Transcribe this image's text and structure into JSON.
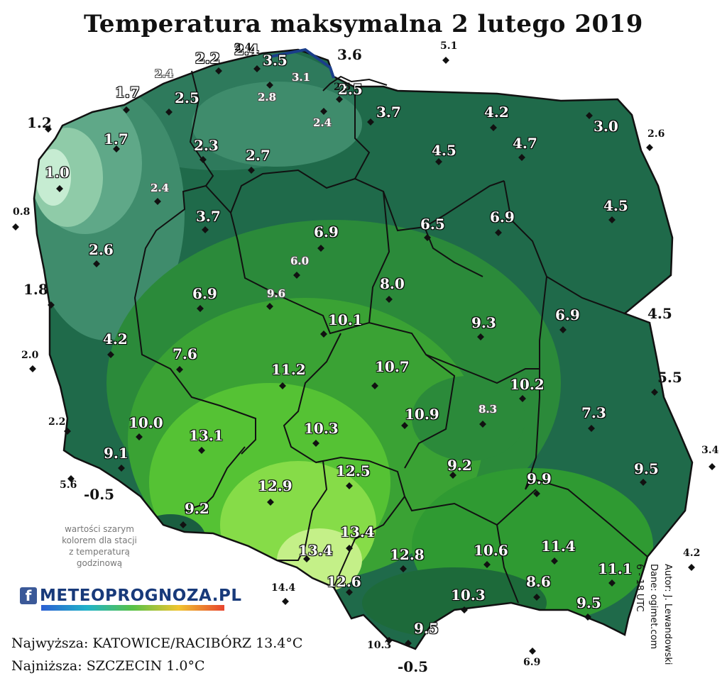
{
  "title": "Temperatura maksymalna 2 lutego 2019",
  "colors": {
    "background": "#ffffff",
    "band_coldest": "#a8dcc0",
    "band_cold": "#5fa888",
    "band_cool": "#2e7a5c",
    "band_mild": "#1f6a4a",
    "band_warm": "#3a9a30",
    "band_warmest": "#6fd23c",
    "band_hot": "#b5f07a",
    "borders": "#111111"
  },
  "stations_inside": [
    {
      "value": "2.2"
    },
    {
      "value": "2.4"
    },
    {
      "value": "3.5"
    },
    {
      "value": "1.7"
    },
    {
      "value": "2.5"
    },
    {
      "value": "2.5"
    },
    {
      "value": "3.7"
    },
    {
      "value": "4.2"
    },
    {
      "value": "1.2"
    },
    {
      "value": "1.7"
    },
    {
      "value": "3.0"
    },
    {
      "value": "2.3"
    },
    {
      "value": "1.0"
    },
    {
      "value": "2.7"
    },
    {
      "value": "4.5"
    },
    {
      "value": "4.7"
    },
    {
      "value": "4.5"
    },
    {
      "value": "3.7"
    },
    {
      "value": "6.9"
    },
    {
      "value": "6.5"
    },
    {
      "value": "6.9"
    },
    {
      "value": "2.6"
    },
    {
      "value": "1.8"
    },
    {
      "value": "8.0"
    },
    {
      "value": "6.9"
    },
    {
      "value": "10.1"
    },
    {
      "value": "9.3"
    },
    {
      "value": "6.9"
    },
    {
      "value": "4.2"
    },
    {
      "value": "7.6"
    },
    {
      "value": "11.2"
    },
    {
      "value": "10.7"
    },
    {
      "value": "10.2"
    },
    {
      "value": "10.0"
    },
    {
      "value": "10.9"
    },
    {
      "value": "7.3"
    },
    {
      "value": "13.1"
    },
    {
      "value": "10.3"
    },
    {
      "value": "9.1"
    },
    {
      "value": "9.2"
    },
    {
      "value": "12.5"
    },
    {
      "value": "9.5"
    },
    {
      "value": "-0.5"
    },
    {
      "value": "12.9"
    },
    {
      "value": "9.9"
    },
    {
      "value": "9.2"
    },
    {
      "value": "13.4"
    },
    {
      "value": "13.4"
    },
    {
      "value": "12.8"
    },
    {
      "value": "10.6"
    },
    {
      "value": "11.4"
    },
    {
      "value": "11.1"
    },
    {
      "value": "12.6"
    },
    {
      "value": "10.3"
    },
    {
      "value": "8.6"
    },
    {
      "value": "9.5"
    },
    {
      "value": "9.5"
    },
    {
      "value": "-0.5"
    }
  ],
  "stations_gray": [
    {
      "value": "2.4"
    },
    {
      "value": "3.1"
    },
    {
      "value": "2.8"
    },
    {
      "value": "2.4"
    },
    {
      "value": "2.4"
    },
    {
      "value": "6.0"
    },
    {
      "value": "9.6"
    },
    {
      "value": "8.3"
    }
  ],
  "stations_outside": [
    {
      "value": "2.4"
    },
    {
      "value": "3.6"
    },
    {
      "value": "2.5"
    },
    {
      "value": "5.1"
    },
    {
      "value": "2.6"
    },
    {
      "value": "0.8"
    },
    {
      "value": "4.5"
    },
    {
      "value": "2.0"
    },
    {
      "value": "5.5"
    },
    {
      "value": "2.2"
    },
    {
      "value": "5.6"
    },
    {
      "value": "3.4"
    },
    {
      "value": "4.2"
    },
    {
      "value": "14.4"
    },
    {
      "value": "10.3"
    },
    {
      "value": "6.9"
    }
  ],
  "note": {
    "line1": "wartości szarym",
    "line2": "kolorem dla stacji",
    "line3": "z temperaturą",
    "line4": "godzinową"
  },
  "brand": {
    "fb": "f",
    "name": "METEOPROGNOZA.PL"
  },
  "summary": {
    "max": "Najwyższa: KATOWICE/RACIBÓRZ 13.4°C",
    "min": "Najniższa: SZCZECIN 1.0°C"
  },
  "author": {
    "line1": "Autor: J. Lewandowski",
    "line2": "Dane: ogimet.com",
    "line3": "6 - 18 UTC"
  }
}
